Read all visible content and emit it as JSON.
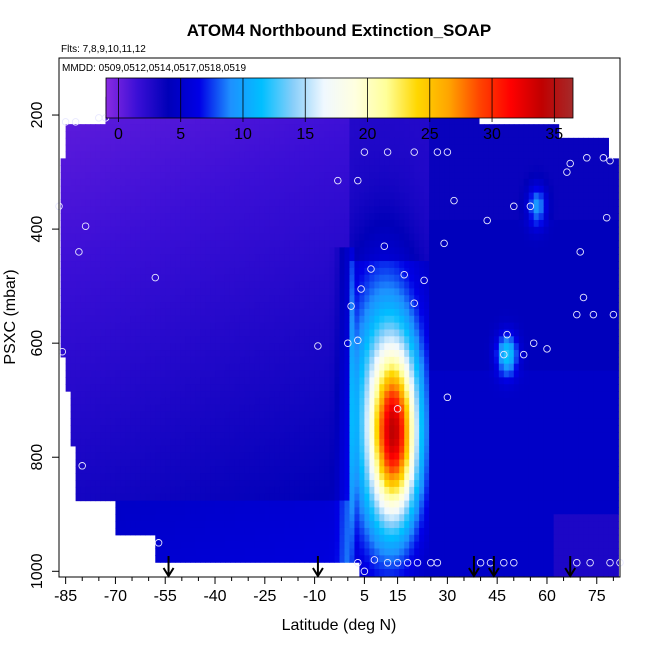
{
  "chart_data": {
    "type": "heatmap",
    "title": "ATOM4 Northbound Extinction_SOAP",
    "subtitle_flights": "Flts: 7,8,9,10,11,12",
    "subtitle_dates": "MMDD: 0509,0512,0514,0517,0518,0519",
    "xlabel": "Latitude (deg N)",
    "ylabel": "PSXC (mbar)",
    "xlim": [
      -87,
      82
    ],
    "ylim": [
      1010,
      100
    ],
    "x_ticks": [
      -85,
      -70,
      -55,
      -40,
      -25,
      -10,
      5,
      15,
      30,
      45,
      60,
      75
    ],
    "y_ticks": [
      200,
      400,
      600,
      800,
      1000
    ],
    "colorbar": {
      "min": -1,
      "max": 36.5,
      "ticks": [
        0,
        5,
        10,
        15,
        20,
        25,
        30,
        35
      ],
      "colors": [
        "#8a2be2",
        "#3b0fd6",
        "#0000b8",
        "#0000e6",
        "#1e90ff",
        "#00bfff",
        "#87cefa",
        "#f0f8ff",
        "#ffffe0",
        "#ffff99",
        "#ffd700",
        "#ffa500",
        "#ff4500",
        "#ff0000",
        "#c00000",
        "#a52a2a"
      ]
    },
    "arrows_latitude": [
      -54,
      -9,
      38,
      44,
      67
    ],
    "sample_points": [
      [
        -85,
        212
      ],
      [
        -82,
        212
      ],
      [
        -75,
        205
      ],
      [
        -73,
        205
      ],
      [
        -70,
        190
      ],
      [
        -68,
        190
      ],
      [
        -65,
        190
      ],
      [
        -61,
        190
      ],
      [
        -87,
        360
      ],
      [
        -79,
        395
      ],
      [
        -81,
        440
      ],
      [
        -58,
        485
      ],
      [
        -86,
        615
      ],
      [
        -80,
        815
      ],
      [
        -57,
        950
      ],
      [
        -9,
        605
      ],
      [
        -3,
        315
      ],
      [
        0,
        600
      ],
      [
        1,
        535
      ],
      [
        3,
        315
      ],
      [
        5,
        265
      ],
      [
        3,
        595
      ],
      [
        4,
        505
      ],
      [
        7,
        470
      ],
      [
        12,
        265
      ],
      [
        11,
        430
      ],
      [
        17,
        480
      ],
      [
        20,
        265
      ],
      [
        20,
        530
      ],
      [
        23,
        490
      ],
      [
        27,
        265
      ],
      [
        30,
        265
      ],
      [
        29,
        425
      ],
      [
        32,
        350
      ],
      [
        30,
        695
      ],
      [
        39,
        190
      ],
      [
        42,
        385
      ],
      [
        47,
        620
      ],
      [
        48,
        585
      ],
      [
        50,
        360
      ],
      [
        53,
        620
      ],
      [
        55,
        360
      ],
      [
        56,
        600
      ],
      [
        60,
        610
      ],
      [
        66,
        300
      ],
      [
        67,
        285
      ],
      [
        69,
        550
      ],
      [
        70,
        440
      ],
      [
        71,
        520
      ],
      [
        72,
        275
      ],
      [
        74,
        550
      ],
      [
        77,
        275
      ],
      [
        78,
        380
      ],
      [
        79,
        280
      ],
      [
        80,
        550
      ],
      [
        15,
        715
      ],
      [
        3,
        985
      ],
      [
        5,
        1000
      ],
      [
        8,
        980
      ],
      [
        12,
        985
      ],
      [
        15,
        985
      ],
      [
        18,
        985
      ],
      [
        21,
        985
      ],
      [
        25,
        985
      ],
      [
        27,
        985
      ],
      [
        40,
        985
      ],
      [
        43,
        985
      ],
      [
        47,
        985
      ],
      [
        50,
        985
      ],
      [
        69,
        985
      ],
      [
        73,
        985
      ],
      [
        79,
        985
      ],
      [
        82,
        985
      ]
    ]
  }
}
